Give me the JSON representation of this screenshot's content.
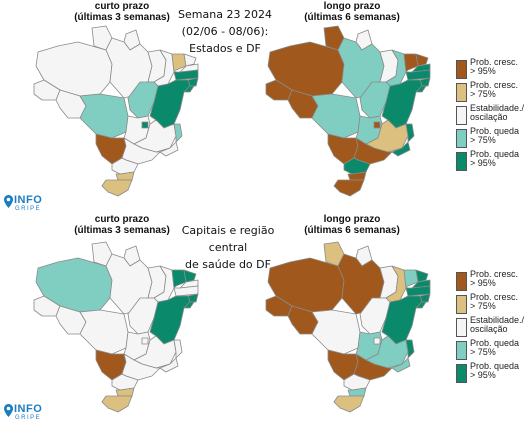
{
  "title_top": "Semana 23 2024",
  "title_top_dates": "(02/06 - 08/06):",
  "title_top_scope": "Estados e DF",
  "title_bottom_1": "Capitais e região central",
  "title_bottom_2": "de saúde do DF",
  "panels": {
    "top_left": {
      "title": "curto prazo",
      "subtitle": "(últimas 3 semanas)"
    },
    "top_right": {
      "title": "longo prazo",
      "subtitle": "(últimas 6 semanas)"
    },
    "bottom_left": {
      "title": "curto prazo",
      "subtitle": "(últimas 3 semanas)"
    },
    "bottom_right": {
      "title": "longo prazo",
      "subtitle": "(últimas 6 semanas)"
    }
  },
  "legend": [
    {
      "line1": "Prob. cresc.",
      "line2": "> 95%",
      "color": "#a0581c"
    },
    {
      "line1": "Prob. cresc.",
      "line2": "> 75%",
      "color": "#dcc080"
    },
    {
      "line1": "Estabilidade./",
      "line2": "oscilação",
      "color": "#f5f5f5"
    },
    {
      "line1": "Prob. queda",
      "line2": "> 75%",
      "color": "#80cdc1"
    },
    {
      "line1": "Prob. queda",
      "line2": "> 95%",
      "color": "#0a8a6a"
    }
  ],
  "logo": {
    "text": "INFO",
    "sub": "GRIPE"
  },
  "map_colors": {
    "top_left": {
      "AM": "s",
      "RR": "s",
      "AP": "s",
      "PA": "s",
      "AC": "s",
      "RO": "s",
      "MT": "qm",
      "TO": "qm",
      "MA": "s",
      "PI": "s",
      "CE": "cm",
      "RN": "s",
      "PB": "s",
      "PE": "qs",
      "AL": "qs",
      "SE": "qs",
      "BA": "qs",
      "GO": "s",
      "DF": "qs",
      "MG": "s",
      "ES": "qm",
      "RJ": "s",
      "SP": "s",
      "MS": "cs",
      "PR": "s",
      "SC": "cm",
      "RS": "cm"
    },
    "top_right": {
      "AM": "cs",
      "RR": "cs",
      "AP": "s",
      "PA": "qm",
      "AC": "cs",
      "RO": "cs",
      "MT": "qm",
      "TO": "qm",
      "MA": "s",
      "PI": "qm",
      "CE": "cs",
      "RN": "cs",
      "PB": "qs",
      "PE": "qs",
      "AL": "qs",
      "SE": "qs",
      "BA": "qs",
      "GO": "qm",
      "DF": "cs",
      "MG": "cm",
      "ES": "qs",
      "RJ": "qs",
      "SP": "cs",
      "MS": "cs",
      "PR": "qs",
      "SC": "cs",
      "RS": "cs"
    },
    "bottom_left": {
      "AM": "qm",
      "RR": "s",
      "AP": "s",
      "PA": "s",
      "AC": "s",
      "RO": "s",
      "MT": "s",
      "TO": "s",
      "MA": "s",
      "PI": "s",
      "CE": "qs",
      "RN": "qs",
      "PB": "s",
      "PE": "s",
      "AL": "qs",
      "SE": "qs",
      "BA": "qs",
      "GO": "s",
      "DF": "s",
      "MG": "s",
      "ES": "s",
      "RJ": "s",
      "SP": "s",
      "MS": "cs",
      "PR": "s",
      "SC": "cm",
      "RS": "cm"
    },
    "bottom_right": {
      "AM": "cs",
      "RR": "cm",
      "AP": "s",
      "PA": "cs",
      "AC": "cs",
      "RO": "cs",
      "MT": "s",
      "TO": "s",
      "MA": "s",
      "PI": "cm",
      "CE": "qm",
      "RN": "qs",
      "PB": "qs",
      "PE": "qs",
      "AL": "qs",
      "SE": "qs",
      "BA": "qs",
      "GO": "qm",
      "DF": "s",
      "MG": "qm",
      "ES": "qs",
      "RJ": "qm",
      "SP": "cs",
      "MS": "cs",
      "PR": "s",
      "SC": "qm",
      "RS": "cm"
    }
  }
}
